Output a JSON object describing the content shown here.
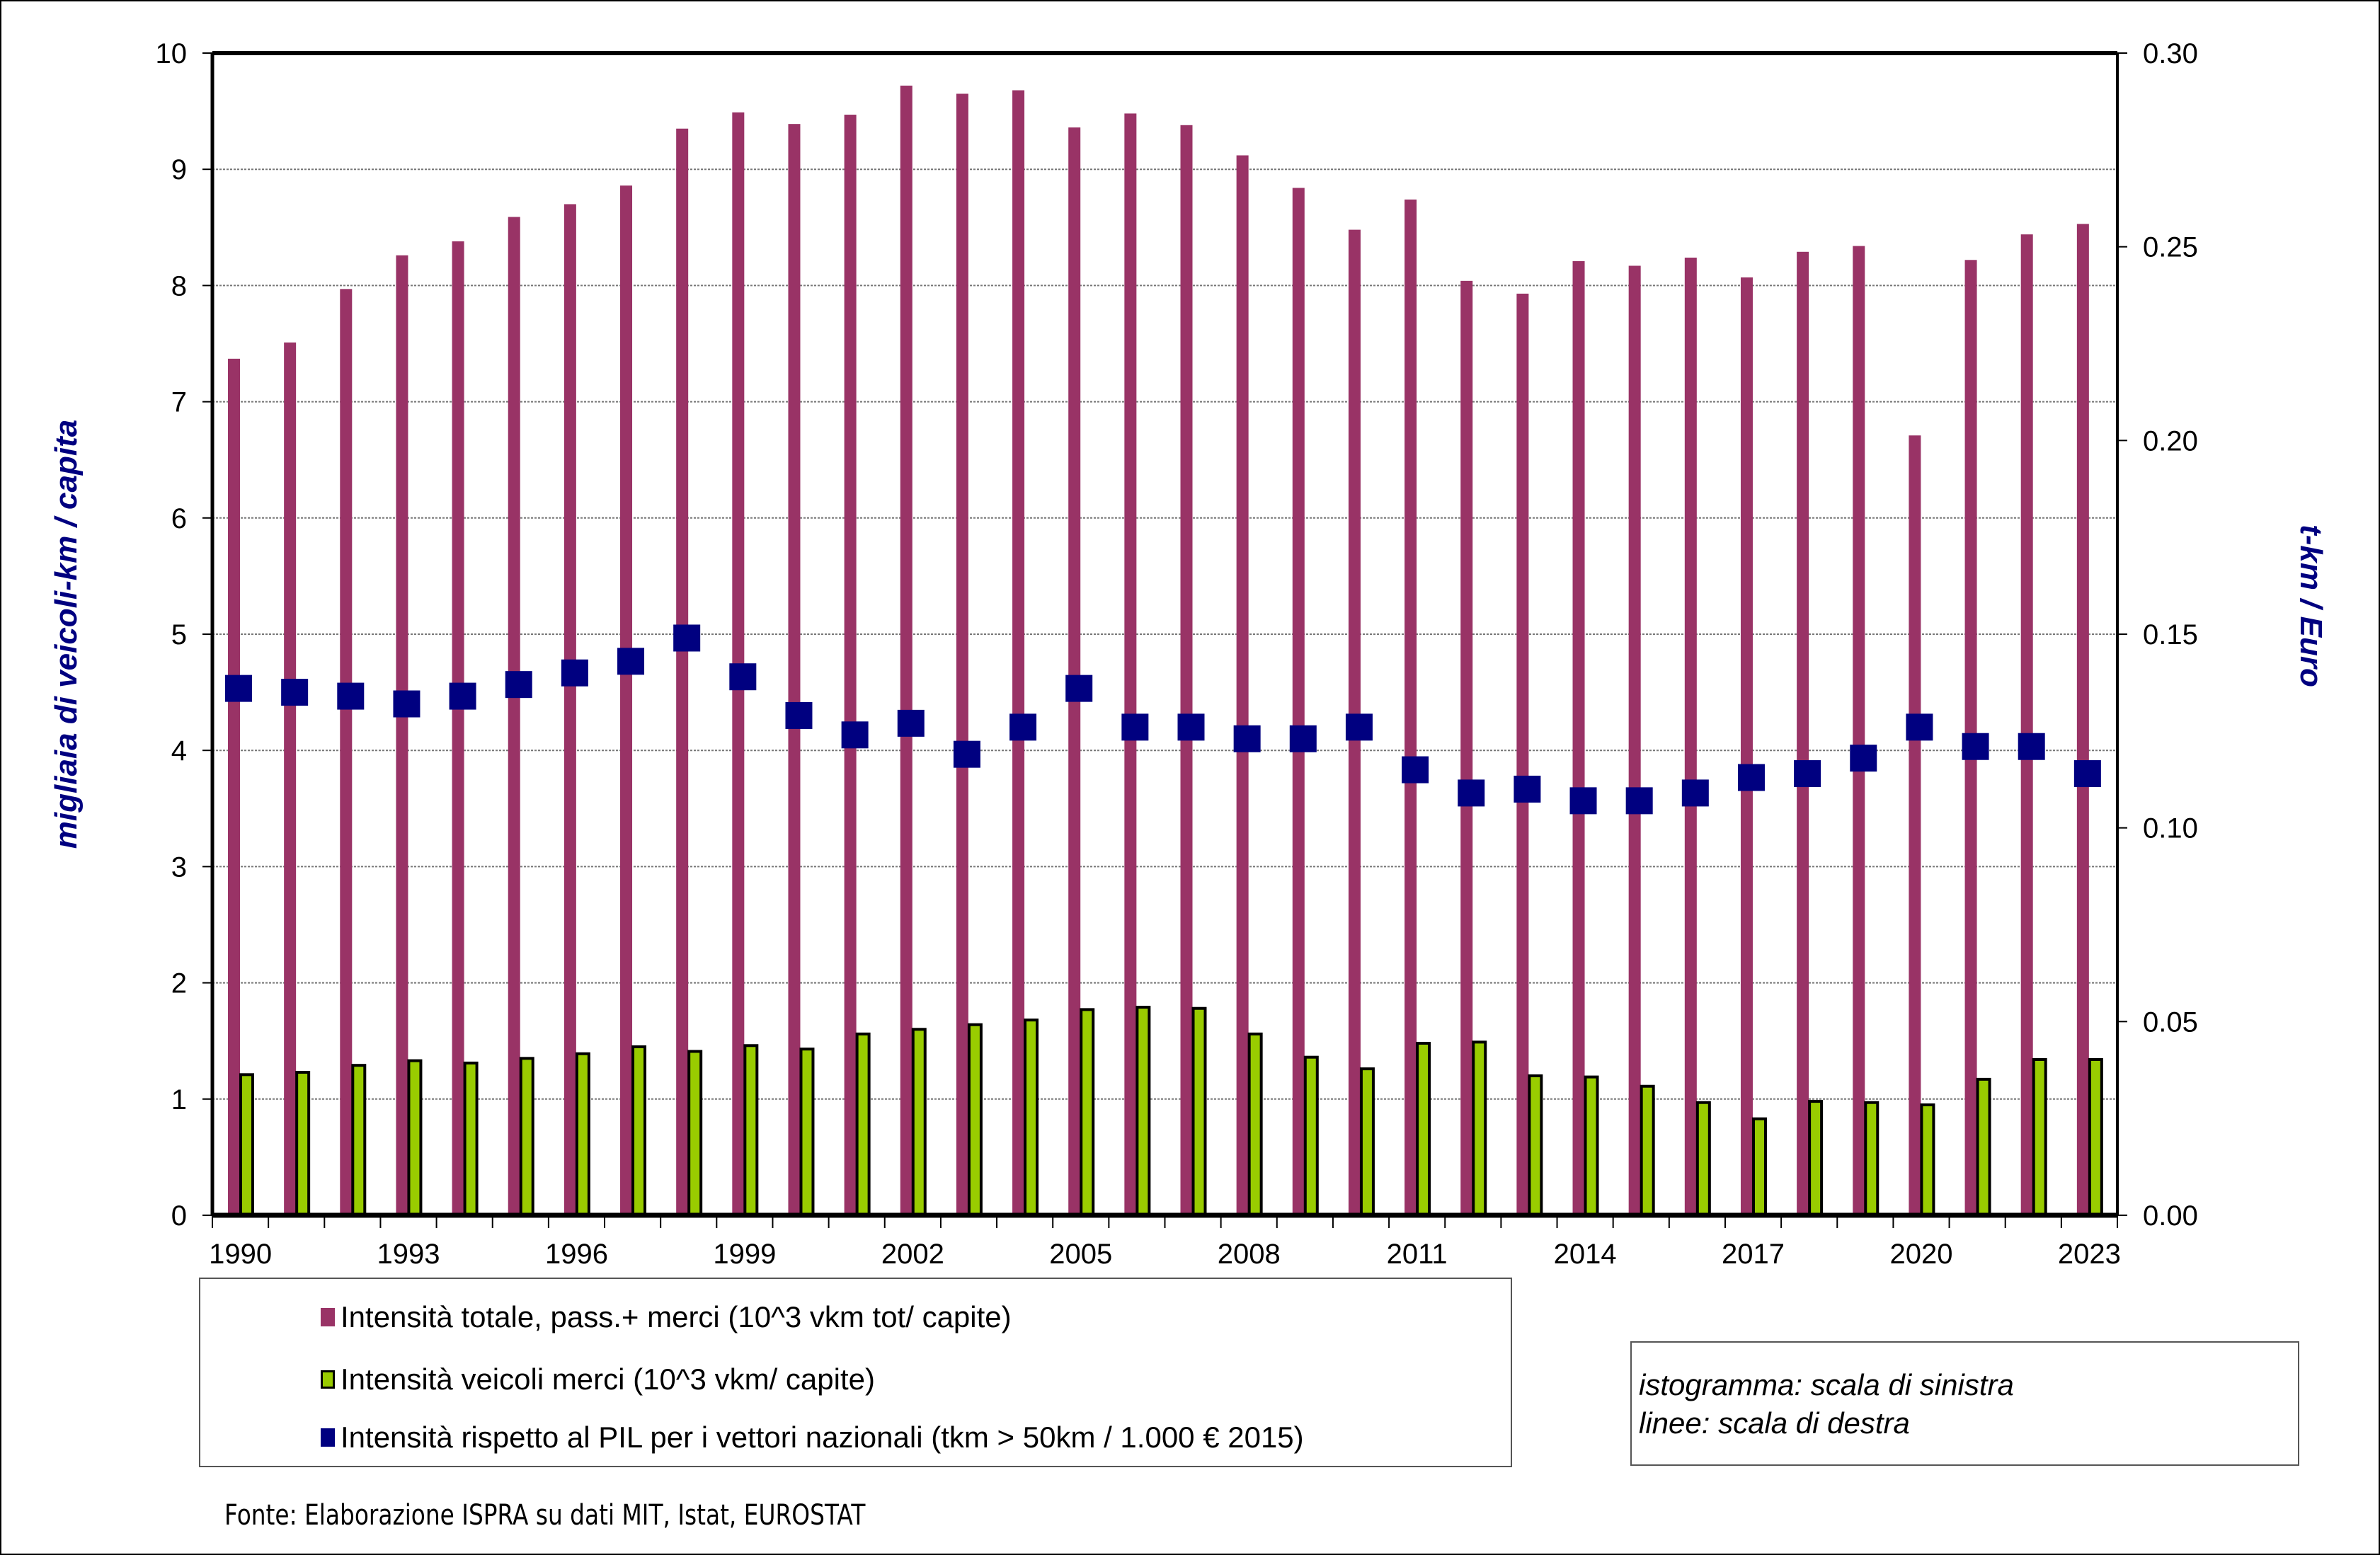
{
  "chart_data": {
    "type": "bar",
    "combo": "bar + marker-line (secondary axis)",
    "title": "",
    "categories": [
      "1990",
      "1991",
      "1992",
      "1993",
      "1994",
      "1995",
      "1996",
      "1997",
      "1998",
      "1999",
      "2000",
      "2001",
      "2002",
      "2003",
      "2004",
      "2005",
      "2006",
      "2007",
      "2008",
      "2009",
      "2010",
      "2011",
      "2012",
      "2013",
      "2014",
      "2015",
      "2016",
      "2017",
      "2018",
      "2019",
      "2020",
      "2021",
      "2022",
      "2023"
    ],
    "x_tick_labels": [
      "1990",
      "1993",
      "1996",
      "1999",
      "2002",
      "2005",
      "2008",
      "2011",
      "2014",
      "2017",
      "2020",
      "2023"
    ],
    "ylabel": "migliaia di veicoli-km / capita",
    "ylabel_right": "t-km / Euro",
    "ylim": [
      0,
      10
    ],
    "ylim_right": [
      0,
      0.3
    ],
    "y_ticks": [
      "0",
      "1",
      "2",
      "3",
      "4",
      "5",
      "6",
      "7",
      "8",
      "9",
      "10"
    ],
    "y_ticks_right": [
      "0.00",
      "0.05",
      "0.10",
      "0.15",
      "0.20",
      "0.25",
      "0.30"
    ],
    "grid": true,
    "legend_position": "bottom",
    "series": [
      {
        "name": "Intensità totale, pass.+ merci  (10^3 vkm tot/ capite)",
        "type": "bar",
        "axis": "left",
        "color": "#993366",
        "values": [
          7.37,
          7.51,
          7.97,
          8.26,
          8.38,
          8.59,
          8.7,
          8.86,
          9.35,
          9.49,
          9.39,
          9.47,
          9.72,
          9.65,
          9.68,
          9.36,
          9.48,
          9.38,
          9.12,
          8.84,
          8.48,
          8.74,
          8.04,
          7.93,
          8.21,
          8.17,
          8.24,
          8.07,
          8.29,
          8.34,
          6.71,
          8.22,
          8.44,
          8.53
        ]
      },
      {
        "name": "Intensità veicoli merci  (10^3 vkm/ capite)",
        "type": "bar",
        "axis": "left",
        "color": "#99CC00",
        "values": [
          1.21,
          1.23,
          1.29,
          1.33,
          1.31,
          1.35,
          1.39,
          1.45,
          1.41,
          1.46,
          1.43,
          1.56,
          1.6,
          1.64,
          1.68,
          1.77,
          1.79,
          1.78,
          1.56,
          1.36,
          1.26,
          1.48,
          1.49,
          1.2,
          1.19,
          1.11,
          0.97,
          0.83,
          0.98,
          0.97,
          0.95,
          1.17,
          1.34,
          1.34
        ]
      },
      {
        "name": "Intensità rispetto al PIL per i vettori nazionali (tkm > 50km / 1.000 € 2015)",
        "type": "marker",
        "axis": "right",
        "color": "#000080",
        "values": [
          0.136,
          0.135,
          0.134,
          0.132,
          0.134,
          0.137,
          0.14,
          0.143,
          0.149,
          0.139,
          0.129,
          0.124,
          0.127,
          0.119,
          0.126,
          0.136,
          0.126,
          0.126,
          0.123,
          0.123,
          0.126,
          0.115,
          0.109,
          0.11,
          0.107,
          0.107,
          0.109,
          0.113,
          0.114,
          0.118,
          0.126,
          0.121,
          0.121,
          0.114
        ]
      }
    ],
    "annotations": [
      "istogramma: scala di sinistra",
      "linee: scala di destra"
    ],
    "source": "Fonte: Elaborazione ISPRA su dati MIT, Istat, EUROSTAT"
  },
  "note": {
    "line1": "istogramma: scala di sinistra",
    "line2": "linee: scala di destra"
  },
  "source": "Fonte: Elaborazione ISPRA su dati MIT, Istat, EUROSTAT"
}
